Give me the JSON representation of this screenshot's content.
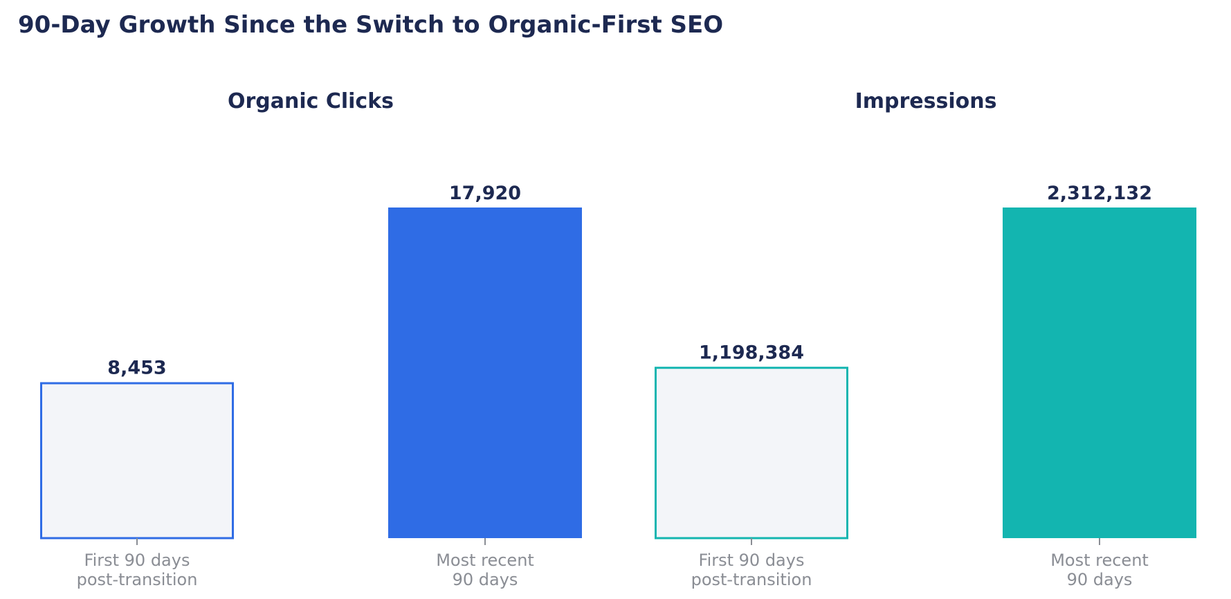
{
  "title": "90-Day Growth Since the Switch to Organic-First SEO",
  "colors": {
    "title": "#1d2951",
    "value_label": "#1d2951",
    "tick_label": "#8a8d94",
    "tick_mark": "#8a8d94",
    "empty_bar_fill": "#f3f5f9"
  },
  "chart_data": [
    {
      "type": "bar",
      "title": "Organic Clicks",
      "categories": [
        "First 90 days post-transition",
        "Most recent 90 days"
      ],
      "category_lines": [
        [
          "First 90 days",
          "post-transition"
        ],
        [
          "Most recent",
          "90 days"
        ]
      ],
      "values": [
        8453,
        17920
      ],
      "value_labels": [
        "8,453",
        "17,920"
      ],
      "ylim": [
        0,
        17920
      ],
      "grid": false,
      "color": "#2f6ce5",
      "bar_styles": [
        "outline",
        "filled"
      ]
    },
    {
      "type": "bar",
      "title": "Impressions",
      "categories": [
        "First 90 days post-transition",
        "Most recent 90 days"
      ],
      "category_lines": [
        [
          "First 90 days",
          "post-transition"
        ],
        [
          "Most recent",
          "90 days"
        ]
      ],
      "values": [
        1198384,
        2312132
      ],
      "value_labels": [
        "1,198,384",
        "2,312,132"
      ],
      "ylim": [
        0,
        2312132
      ],
      "grid": false,
      "color": "#13b5b0",
      "bar_styles": [
        "outline",
        "filled"
      ]
    }
  ]
}
